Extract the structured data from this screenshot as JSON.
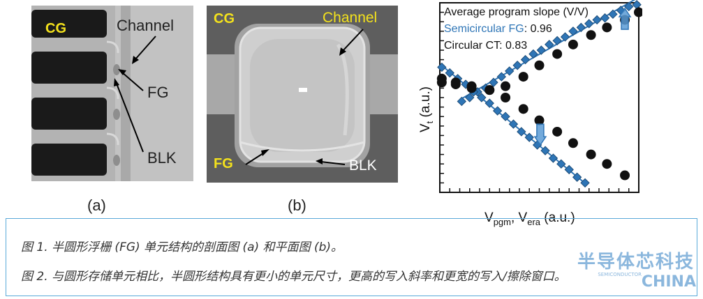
{
  "figure_a": {
    "label_cg": "CG",
    "label_channel": "Channel",
    "label_fg": "FG",
    "label_blk": "BLK",
    "caption": "(a)"
  },
  "figure_b": {
    "label_cg": "CG",
    "label_channel": "Channel",
    "label_fg": "FG",
    "label_blk": "BLK",
    "caption": "(b)"
  },
  "chart_data": {
    "type": "scatter",
    "title": "Average program slope (V/V)",
    "legend_fg_name": "Semicircular FG",
    "legend_fg_value": ": 0.96",
    "legend_ct_name": "Circular CT: 0.83",
    "ylabel_main": "V",
    "ylabel_sub": "t",
    "ylabel_unit": " (a.u.)",
    "xlabel_v1": "V",
    "xlabel_s1": "pgm",
    "xlabel_mid": ", V",
    "xlabel_s2": "era",
    "xlabel_unit": " (a.u.)",
    "xlim": [
      0,
      10
    ],
    "ylim": [
      0,
      10
    ],
    "series": [
      {
        "name": "Semicircular FG",
        "color": "#2e75b6",
        "marker": "diamond",
        "program_x": [
          1.1,
          1.5,
          1.9,
          2.3,
          2.7,
          3.1,
          3.5,
          3.9,
          4.3,
          4.7,
          5.1,
          5.5,
          5.9,
          6.3,
          6.7,
          7.1,
          7.5,
          7.9,
          8.3,
          8.7,
          9.1,
          9.5,
          9.9
        ],
        "program_y": [
          4.8,
          5.0,
          5.3,
          5.5,
          5.8,
          6.1,
          6.4,
          6.7,
          7.0,
          7.3,
          7.5,
          7.8,
          8.0,
          8.2,
          8.5,
          8.7,
          8.9,
          9.1,
          9.2,
          9.4,
          9.6,
          9.8,
          9.9
        ],
        "erase_x": [
          0.1,
          0.5,
          0.9,
          1.3,
          1.7,
          2.1,
          2.5,
          2.9,
          3.3,
          3.7,
          4.1,
          4.5,
          4.9,
          5.3,
          5.7,
          6.1,
          6.5,
          6.9,
          7.3
        ],
        "erase_y": [
          6.6,
          6.3,
          6.0,
          5.7,
          5.3,
          5.0,
          4.7,
          4.3,
          4.0,
          3.6,
          3.2,
          2.9,
          2.5,
          2.2,
          1.8,
          1.5,
          1.2,
          0.8,
          0.5
        ]
      },
      {
        "name": "Circular CT",
        "color": "#111111",
        "marker": "circle",
        "program_x": [
          0.1,
          0.8,
          1.6,
          2.5,
          3.3,
          4.2,
          5.0,
          5.9,
          6.7,
          7.6,
          8.4,
          9.3,
          10.0
        ],
        "program_y": [
          6.0,
          5.7,
          5.5,
          5.4,
          5.6,
          6.1,
          6.7,
          7.3,
          7.8,
          8.3,
          8.7,
          9.1,
          9.5
        ],
        "erase_x": [
          0.1,
          0.8,
          1.6,
          2.5,
          3.3,
          4.2,
          5.0,
          5.9,
          6.7,
          7.6,
          8.4,
          9.3
        ],
        "erase_y": [
          5.8,
          5.8,
          5.6,
          5.4,
          5.0,
          4.4,
          3.8,
          3.2,
          2.6,
          2.0,
          1.5,
          0.9
        ]
      }
    ]
  },
  "captions": {
    "fig1": "图 1. 半圆形浮栅 (FG) 单元结构的剖面图 (a) 和平面图 (b)。",
    "fig2": "图 2. 与圆形存储单元相比，半圆形结构具有更小的单元尺寸，更高的写入斜率和更宽的写入/擦除窗口。"
  },
  "watermark": {
    "cn": "半导体芯科技",
    "small": "SEMICONDUCTOR",
    "en": "CHINA"
  },
  "colors": {
    "accent": "#2e75b6",
    "frame": "#5aa9d8",
    "label_yellow": "#f4e21c"
  }
}
